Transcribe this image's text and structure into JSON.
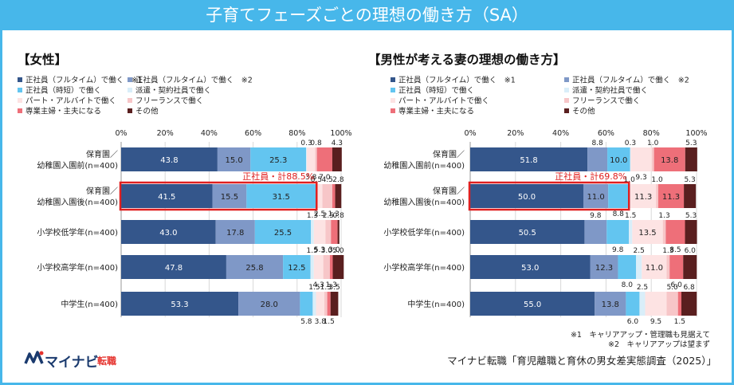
{
  "title": "子育てフェーズごとの理想の働き方（SA）",
  "legend_items": [
    {
      "label": "正社員（フルタイム）で働く　※1",
      "color": "#34568b"
    },
    {
      "label": "正社員（フルタイム）で働く　※2",
      "color": "#7f98c7"
    },
    {
      "label": "正社員（時短）で働く",
      "color": "#63c5f0"
    },
    {
      "label": "派遣・契約社員で働く",
      "color": "#d9eef9"
    },
    {
      "label": "パート・アルバイトで働く",
      "color": "#fde3e3"
    },
    {
      "label": "フリーランスで働く",
      "color": "#f7c6c8"
    },
    {
      "label": "専業主婦・主夫になる",
      "color": "#ee6f79"
    },
    {
      "label": "その他",
      "color": "#5a1f1f"
    }
  ],
  "x_ticks": [
    "0%",
    "20%",
    "40%",
    "60%",
    "80%",
    "100%"
  ],
  "chart_data": [
    {
      "type": "bar",
      "orientation": "horizontal",
      "stacked": true,
      "title": "【女性】",
      "categories": [
        [
          "保育園／",
          "幼稚園入園前(n=400)"
        ],
        [
          "保育園／",
          "幼稚園入園後(n=400)"
        ],
        [
          "小学校低学年(n=400)"
        ],
        [
          "小学校高学年(n=400)"
        ],
        [
          "中学生(n=400)"
        ]
      ],
      "xlim": [
        0,
        100
      ],
      "series": [
        {
          "name": "正社員（フルタイム）で働く　※1",
          "values": [
            43.8,
            41.5,
            43.0,
            47.8,
            53.3
          ]
        },
        {
          "name": "正社員（フルタイム）で働く　※2",
          "values": [
            15.0,
            15.5,
            17.8,
            25.8,
            28.0
          ]
        },
        {
          "name": "正社員（時短）で働く",
          "values": [
            25.3,
            31.5,
            25.5,
            12.5,
            5.8
          ]
        },
        {
          "name": "派遣・契約社員で働く",
          "values": [
            0.3,
            0.5,
            1.3,
            1.5,
            1.5
          ]
        },
        {
          "name": "パート・アルバイトで働く",
          "values": [
            3.8,
            2.5,
            5.3,
            4.3,
            3.8
          ]
        },
        {
          "name": "フリーランスで働く",
          "values": [
            0.8,
            4.5,
            2.5,
            3.0,
            1.3
          ]
        },
        {
          "name": "専業主婦・主夫になる",
          "values": [
            7.0,
            1.3,
            3.0,
            1.3,
            1.5
          ]
        },
        {
          "name": "その他",
          "values": [
            4.3,
            2.8,
            0.8,
            5.0,
            3.5
          ]
        }
      ],
      "annotation": {
        "text": "正社員・計88.5%",
        "category_index": 1
      }
    },
    {
      "type": "bar",
      "orientation": "horizontal",
      "stacked": true,
      "title": "【男性が考える妻の理想の働き方】",
      "categories": [
        [
          "保育園／",
          "幼稚園入園前(n=400)"
        ],
        [
          "保育園／",
          "幼稚園入園後(n=400)"
        ],
        [
          "小学校低学年(n=400)"
        ],
        [
          "小学校高学年(n=400)"
        ],
        [
          "中学生(n=400)"
        ]
      ],
      "xlim": [
        0,
        100
      ],
      "series": [
        {
          "name": "正社員（フルタイム）で働く　※1",
          "values": [
            51.8,
            50.0,
            50.5,
            53.0,
            55.0
          ]
        },
        {
          "name": "正社員（フルタイム）で働く　※2",
          "values": [
            8.8,
            11.0,
            9.8,
            12.3,
            13.8
          ]
        },
        {
          "name": "正社員（時短）で働く",
          "values": [
            10.0,
            8.8,
            9.8,
            8.0,
            6.0
          ]
        },
        {
          "name": "派遣・契約社員で働く",
          "values": [
            0.3,
            1.0,
            1.5,
            2.5,
            2.5
          ]
        },
        {
          "name": "パート・アルバイトで働く",
          "values": [
            9.3,
            11.3,
            13.5,
            11.0,
            9.5
          ]
        },
        {
          "name": "フリーランスで働く",
          "values": [
            1.0,
            1.0,
            1.3,
            1.3,
            5.0
          ]
        },
        {
          "name": "専業主婦・主夫になる",
          "values": [
            13.8,
            11.3,
            8.5,
            6.0,
            1.5
          ]
        },
        {
          "name": "その他",
          "values": [
            5.3,
            5.3,
            5.3,
            6.0,
            6.8
          ]
        }
      ],
      "annotation": {
        "text": "正社員・計69.8%",
        "category_index": 1
      }
    }
  ],
  "footnotes": {
    "note1": "※1　キャリアアップ・管理職も見据えて",
    "note2": "※2　キャリアアップは望まず",
    "source": "マイナビ転職「育児離職と育休の男女差実態調査（2025）」"
  },
  "logo": {
    "brand": "マイナビ",
    "sub": "転職"
  }
}
